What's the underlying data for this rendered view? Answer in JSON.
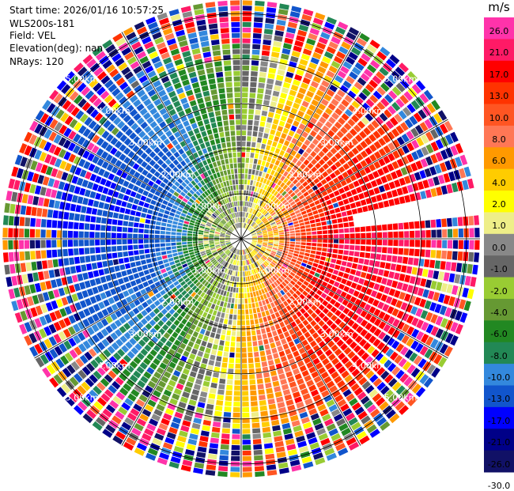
{
  "header": {
    "start_time": "Start time: 2026/01/16 10:57:25",
    "instrument": "WLS200s-181",
    "field": "Field: VEL",
    "elevation": "Elevation(deg): nan",
    "nrays": "NRays: 120"
  },
  "colorbar": {
    "unit": "m/s",
    "ticks": [
      "26.0",
      "21.0",
      "17.0",
      "13.0",
      "10.0",
      "8.0",
      "6.0",
      "4.0",
      "2.0",
      "1.0",
      "0.0",
      "-1.0",
      "-2.0",
      "-4.0",
      "-6.0",
      "-8.0",
      "-10.0",
      "-13.0",
      "-17.0",
      "-21.0",
      "-26.0",
      "-30.0"
    ],
    "colors": [
      "#ff33aa",
      "#ff1a66",
      "#ff0000",
      "#ff3300",
      "#ff5522",
      "#ff7755",
      "#ff9900",
      "#ffcc00",
      "#ffff00",
      "#eeee88",
      "#888888",
      "#666666",
      "#99cc33",
      "#669933",
      "#228822",
      "#228855",
      "#3388dd",
      "#1155cc",
      "#0000ff",
      "#000088",
      "#111166"
    ]
  },
  "chart_data": {
    "type": "polar_ppi",
    "field": "VEL",
    "units": "m/s",
    "nrays": 120,
    "range_rings_km": [
      1.0,
      2.0,
      3.0,
      4.0,
      5.0
    ],
    "range_labels": [
      "1.00km",
      "2.00km",
      "3.00km",
      "4.00km",
      "5.00km"
    ],
    "max_range_km": 5.3,
    "gates_per_ray": 44,
    "velocity_pattern": {
      "inner_blue_bearing_deg": 305,
      "inner_red_bearing_deg": 100,
      "outer_noise_from_km": 4.3
    }
  }
}
